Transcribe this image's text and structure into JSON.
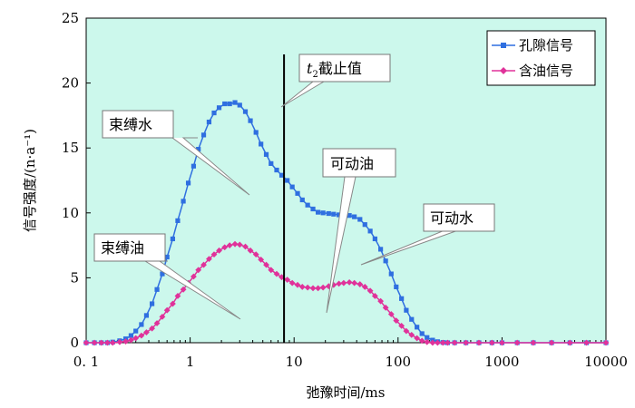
{
  "chart_data": {
    "type": "line",
    "xlabel": "弛豫时间/ms",
    "ylabel": "信号强度/(n·a⁻¹)",
    "xscale": "log",
    "xlim": [
      0.1,
      10000
    ],
    "ylim": [
      0,
      25
    ],
    "x_ticks": [
      "0. 1",
      "1",
      "10",
      "100",
      "1000",
      "10000"
    ],
    "y_ticks": [
      "0",
      "5",
      "10",
      "15",
      "20",
      "25"
    ],
    "grid": false,
    "legend_position": "top-right",
    "cutoff": {
      "x": 8,
      "label_prefix": "t",
      "label_sub": "2",
      "label_suffix": "截止值"
    },
    "annotations": [
      "束缚水",
      "束缚油",
      "可动油",
      "可动水"
    ],
    "colors": {
      "porosity": "#2f6fe0",
      "oil": "#e0329a",
      "plot_bg": "#ccf8ec"
    },
    "series": [
      {
        "name": "孔隙信号",
        "color": "#2f6fe0",
        "marker": "square",
        "points": [
          [
            0.1,
            0
          ],
          [
            0.12,
            0
          ],
          [
            0.14,
            0
          ],
          [
            0.16,
            0
          ],
          [
            0.18,
            0.05
          ],
          [
            0.21,
            0.15
          ],
          [
            0.24,
            0.3
          ],
          [
            0.27,
            0.55
          ],
          [
            0.3,
            0.9
          ],
          [
            0.34,
            1.4
          ],
          [
            0.38,
            2.1
          ],
          [
            0.43,
            3.0
          ],
          [
            0.48,
            4.1
          ],
          [
            0.54,
            5.3
          ],
          [
            0.6,
            6.6
          ],
          [
            0.68,
            8.0
          ],
          [
            0.76,
            9.4
          ],
          [
            0.86,
            10.9
          ],
          [
            0.96,
            12.3
          ],
          [
            1.08,
            13.6
          ],
          [
            1.2,
            14.9
          ],
          [
            1.35,
            16.0
          ],
          [
            1.52,
            17.0
          ],
          [
            1.7,
            17.7
          ],
          [
            1.9,
            18.1
          ],
          [
            2.15,
            18.4
          ],
          [
            2.4,
            18.4
          ],
          [
            2.7,
            18.5
          ],
          [
            3.0,
            18.3
          ],
          [
            3.4,
            17.8
          ],
          [
            3.8,
            17.1
          ],
          [
            4.3,
            16.2
          ],
          [
            4.8,
            15.3
          ],
          [
            5.4,
            14.5
          ],
          [
            6.0,
            13.8
          ],
          [
            6.8,
            13.3
          ],
          [
            7.6,
            12.9
          ],
          [
            8.6,
            12.5
          ],
          [
            9.6,
            12.0
          ],
          [
            10.8,
            11.5
          ],
          [
            12,
            11.0
          ],
          [
            13.5,
            10.6
          ],
          [
            15.2,
            10.3
          ],
          [
            17,
            10.05
          ],
          [
            19,
            10.0
          ],
          [
            21.5,
            9.95
          ],
          [
            24,
            9.9
          ],
          [
            27,
            9.85
          ],
          [
            30,
            9.8
          ],
          [
            34,
            9.8
          ],
          [
            38,
            9.7
          ],
          [
            43,
            9.5
          ],
          [
            48,
            9.1
          ],
          [
            54,
            8.6
          ],
          [
            60,
            8.0
          ],
          [
            68,
            7.2
          ],
          [
            76,
            6.3
          ],
          [
            86,
            5.3
          ],
          [
            96,
            4.3
          ],
          [
            108,
            3.4
          ],
          [
            120,
            2.5
          ],
          [
            135,
            1.8
          ],
          [
            152,
            1.2
          ],
          [
            170,
            0.7
          ],
          [
            190,
            0.4
          ],
          [
            215,
            0.2
          ],
          [
            240,
            0.08
          ],
          [
            270,
            0.02
          ],
          [
            300,
            0
          ],
          [
            350,
            0
          ],
          [
            450,
            0
          ],
          [
            600,
            0
          ],
          [
            800,
            0
          ],
          [
            1000,
            0
          ],
          [
            1400,
            0
          ],
          [
            2000,
            0
          ],
          [
            3000,
            0
          ],
          [
            4500,
            0
          ],
          [
            6500,
            0
          ],
          [
            10000,
            0
          ]
        ]
      },
      {
        "name": "含油信号",
        "color": "#e0329a",
        "marker": "diamond",
        "points": [
          [
            0.1,
            0
          ],
          [
            0.12,
            0
          ],
          [
            0.14,
            0
          ],
          [
            0.16,
            0
          ],
          [
            0.18,
            0
          ],
          [
            0.21,
            0.05
          ],
          [
            0.24,
            0.1
          ],
          [
            0.27,
            0.2
          ],
          [
            0.3,
            0.35
          ],
          [
            0.34,
            0.55
          ],
          [
            0.38,
            0.8
          ],
          [
            0.43,
            1.1
          ],
          [
            0.48,
            1.5
          ],
          [
            0.54,
            2.0
          ],
          [
            0.6,
            2.5
          ],
          [
            0.68,
            3.0
          ],
          [
            0.76,
            3.6
          ],
          [
            0.86,
            4.1
          ],
          [
            0.96,
            4.6
          ],
          [
            1.08,
            5.1
          ],
          [
            1.2,
            5.6
          ],
          [
            1.35,
            6.0
          ],
          [
            1.52,
            6.45
          ],
          [
            1.7,
            6.8
          ],
          [
            1.9,
            7.1
          ],
          [
            2.15,
            7.35
          ],
          [
            2.4,
            7.5
          ],
          [
            2.7,
            7.6
          ],
          [
            3.0,
            7.55
          ],
          [
            3.4,
            7.4
          ],
          [
            3.8,
            7.1
          ],
          [
            4.3,
            6.8
          ],
          [
            4.8,
            6.4
          ],
          [
            5.4,
            6.0
          ],
          [
            6.0,
            5.6
          ],
          [
            6.8,
            5.3
          ],
          [
            7.6,
            5.05
          ],
          [
            8.6,
            4.85
          ],
          [
            9.6,
            4.6
          ],
          [
            10.8,
            4.45
          ],
          [
            12,
            4.3
          ],
          [
            13.5,
            4.25
          ],
          [
            15.2,
            4.2
          ],
          [
            17,
            4.2
          ],
          [
            19,
            4.25
          ],
          [
            21.5,
            4.35
          ],
          [
            24,
            4.45
          ],
          [
            27,
            4.55
          ],
          [
            30,
            4.6
          ],
          [
            34,
            4.65
          ],
          [
            38,
            4.6
          ],
          [
            43,
            4.5
          ],
          [
            48,
            4.3
          ],
          [
            54,
            4.0
          ],
          [
            60,
            3.6
          ],
          [
            68,
            3.2
          ],
          [
            76,
            2.7
          ],
          [
            86,
            2.2
          ],
          [
            96,
            1.7
          ],
          [
            108,
            1.3
          ],
          [
            120,
            0.9
          ],
          [
            135,
            0.6
          ],
          [
            152,
            0.35
          ],
          [
            170,
            0.15
          ],
          [
            190,
            0.05
          ],
          [
            215,
            0
          ],
          [
            240,
            0
          ],
          [
            270,
            0
          ],
          [
            300,
            0
          ],
          [
            350,
            0
          ],
          [
            450,
            0
          ],
          [
            600,
            0
          ],
          [
            800,
            0
          ],
          [
            1000,
            0
          ],
          [
            1400,
            0
          ],
          [
            2000,
            0
          ],
          [
            3000,
            0
          ],
          [
            4500,
            0
          ],
          [
            6500,
            0
          ],
          [
            10000,
            0
          ]
        ]
      }
    ]
  }
}
